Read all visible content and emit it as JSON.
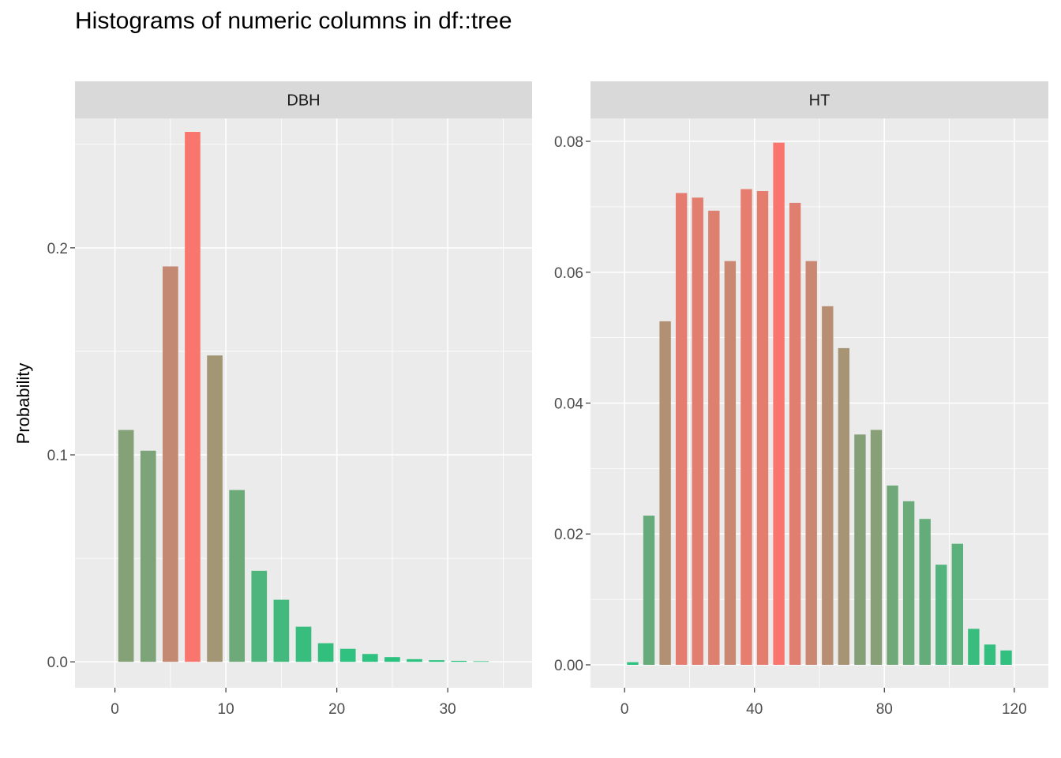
{
  "chart_title": "Histograms of numeric columns in df::tree",
  "y_axis_title": "Probability",
  "colors": {
    "panel_bg": "#EBEBEB",
    "strip_bg": "#D9D9D9",
    "grid": "#FFFFFF",
    "high": "#F8766D",
    "low": "#2BC27F"
  },
  "chart_data": [
    {
      "type": "bar",
      "panel": "DBH",
      "xlim": [
        -3.6,
        37.6
      ],
      "ylim": [
        -0.0125,
        0.2625
      ],
      "x_ticks": [
        0,
        10,
        20,
        30
      ],
      "x_tick_labels": [
        "0",
        "10",
        "20",
        "30"
      ],
      "y_ticks": [
        0.0,
        0.1,
        0.2
      ],
      "y_tick_labels": [
        "0.0",
        "0.1",
        "0.2"
      ],
      "bar_width": 1.4,
      "x": [
        1,
        3,
        5,
        7,
        9,
        11,
        13,
        15,
        17,
        19,
        21,
        23,
        25,
        27,
        29,
        31,
        33
      ],
      "values": [
        0.112,
        0.102,
        0.191,
        0.256,
        0.148,
        0.083,
        0.044,
        0.03,
        0.017,
        0.009,
        0.0063,
        0.0038,
        0.0023,
        0.0013,
        0.0008,
        0.0005,
        0.0003
      ]
    },
    {
      "type": "bar",
      "panel": "HT",
      "xlim": [
        -10.5,
        130.5
      ],
      "ylim": [
        -0.0035,
        0.0835
      ],
      "x_ticks": [
        0,
        40,
        80,
        120
      ],
      "x_tick_labels": [
        "0",
        "40",
        "80",
        "120"
      ],
      "y_ticks": [
        0.0,
        0.02,
        0.04,
        0.06,
        0.08
      ],
      "y_tick_labels": [
        "0.00",
        "0.02",
        "0.04",
        "0.06",
        "0.08"
      ],
      "bar_width": 3.5,
      "x": [
        2.5,
        7.5,
        12.5,
        17.5,
        22.5,
        27.5,
        32.5,
        37.5,
        42.5,
        47.5,
        52.5,
        57.5,
        62.5,
        67.5,
        72.5,
        77.5,
        82.5,
        87.5,
        92.5,
        97.5,
        102.5,
        107.5,
        112.5,
        117.5
      ],
      "values": [
        0.0004,
        0.0228,
        0.0525,
        0.0721,
        0.0714,
        0.0694,
        0.0617,
        0.0727,
        0.0724,
        0.0798,
        0.0706,
        0.0617,
        0.0548,
        0.0484,
        0.0352,
        0.0359,
        0.0274,
        0.025,
        0.0223,
        0.0153,
        0.0185,
        0.0055,
        0.0031,
        0.0022
      ]
    }
  ]
}
